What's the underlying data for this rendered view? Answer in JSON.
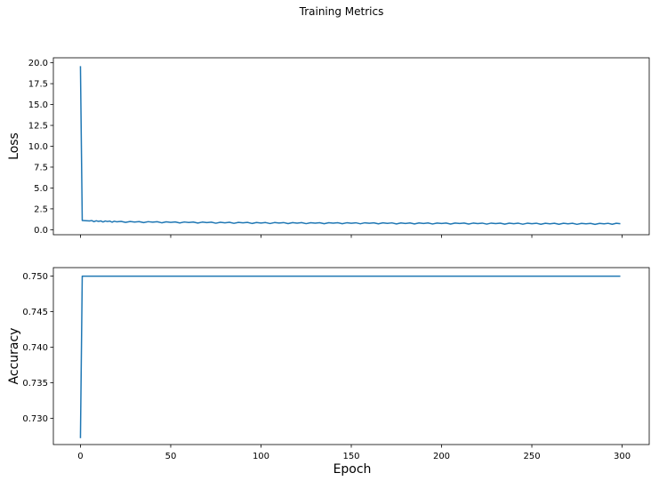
{
  "chart_data": {
    "type": "line",
    "title": "Training Metrics",
    "shared_x_axis": true,
    "xlabel": "Epoch",
    "xlim": [
      -15,
      315
    ],
    "xticks": [
      0,
      50,
      100,
      150,
      200,
      250,
      300
    ],
    "line_color": "#1f77b4",
    "subplots": [
      {
        "name": "loss",
        "ylabel": "Loss",
        "ylim": [
          -0.6,
          20.6
        ],
        "yticks": [
          0.0,
          2.5,
          5.0,
          7.5,
          10.0,
          12.5,
          15.0,
          17.5,
          20.0
        ],
        "ytick_labels": [
          "0.0",
          "2.5",
          "5.0",
          "7.5",
          "10.0",
          "12.5",
          "15.0",
          "17.5",
          "20.0"
        ],
        "series": [
          {
            "x": [
              0,
              1,
              5,
              10,
              15,
              20,
              30,
              40,
              50,
              60,
              70,
              80,
              90,
              100,
              110,
              120,
              130,
              140,
              150,
              160,
              170,
              180,
              190,
              200,
              210,
              220,
              230,
              240,
              250,
              260,
              270,
              280,
              290,
              299
            ],
            "y": [
              19.6,
              1.1,
              1.05,
              1.0,
              0.98,
              0.95,
              0.92,
              0.9,
              0.88,
              0.86,
              0.85,
              0.83,
              0.82,
              0.8,
              0.8,
              0.79,
              0.78,
              0.78,
              0.77,
              0.77,
              0.76,
              0.75,
              0.75,
              0.74,
              0.74,
              0.73,
              0.73,
              0.72,
              0.72,
              0.71,
              0.71,
              0.7,
              0.7,
              0.72
            ]
          }
        ]
      },
      {
        "name": "accuracy",
        "ylabel": "Accuracy",
        "ylim": [
          0.7263,
          0.7512
        ],
        "yticks": [
          0.73,
          0.735,
          0.74,
          0.745,
          0.75
        ],
        "ytick_labels": [
          "0.730",
          "0.735",
          "0.740",
          "0.745",
          "0.750"
        ],
        "series": [
          {
            "x": [
              0,
              1,
              299
            ],
            "y": [
              0.7272,
              0.75,
              0.75
            ]
          }
        ]
      }
    ],
    "xtick_labels": [
      "0",
      "50",
      "100",
      "150",
      "200",
      "250",
      "300"
    ]
  }
}
